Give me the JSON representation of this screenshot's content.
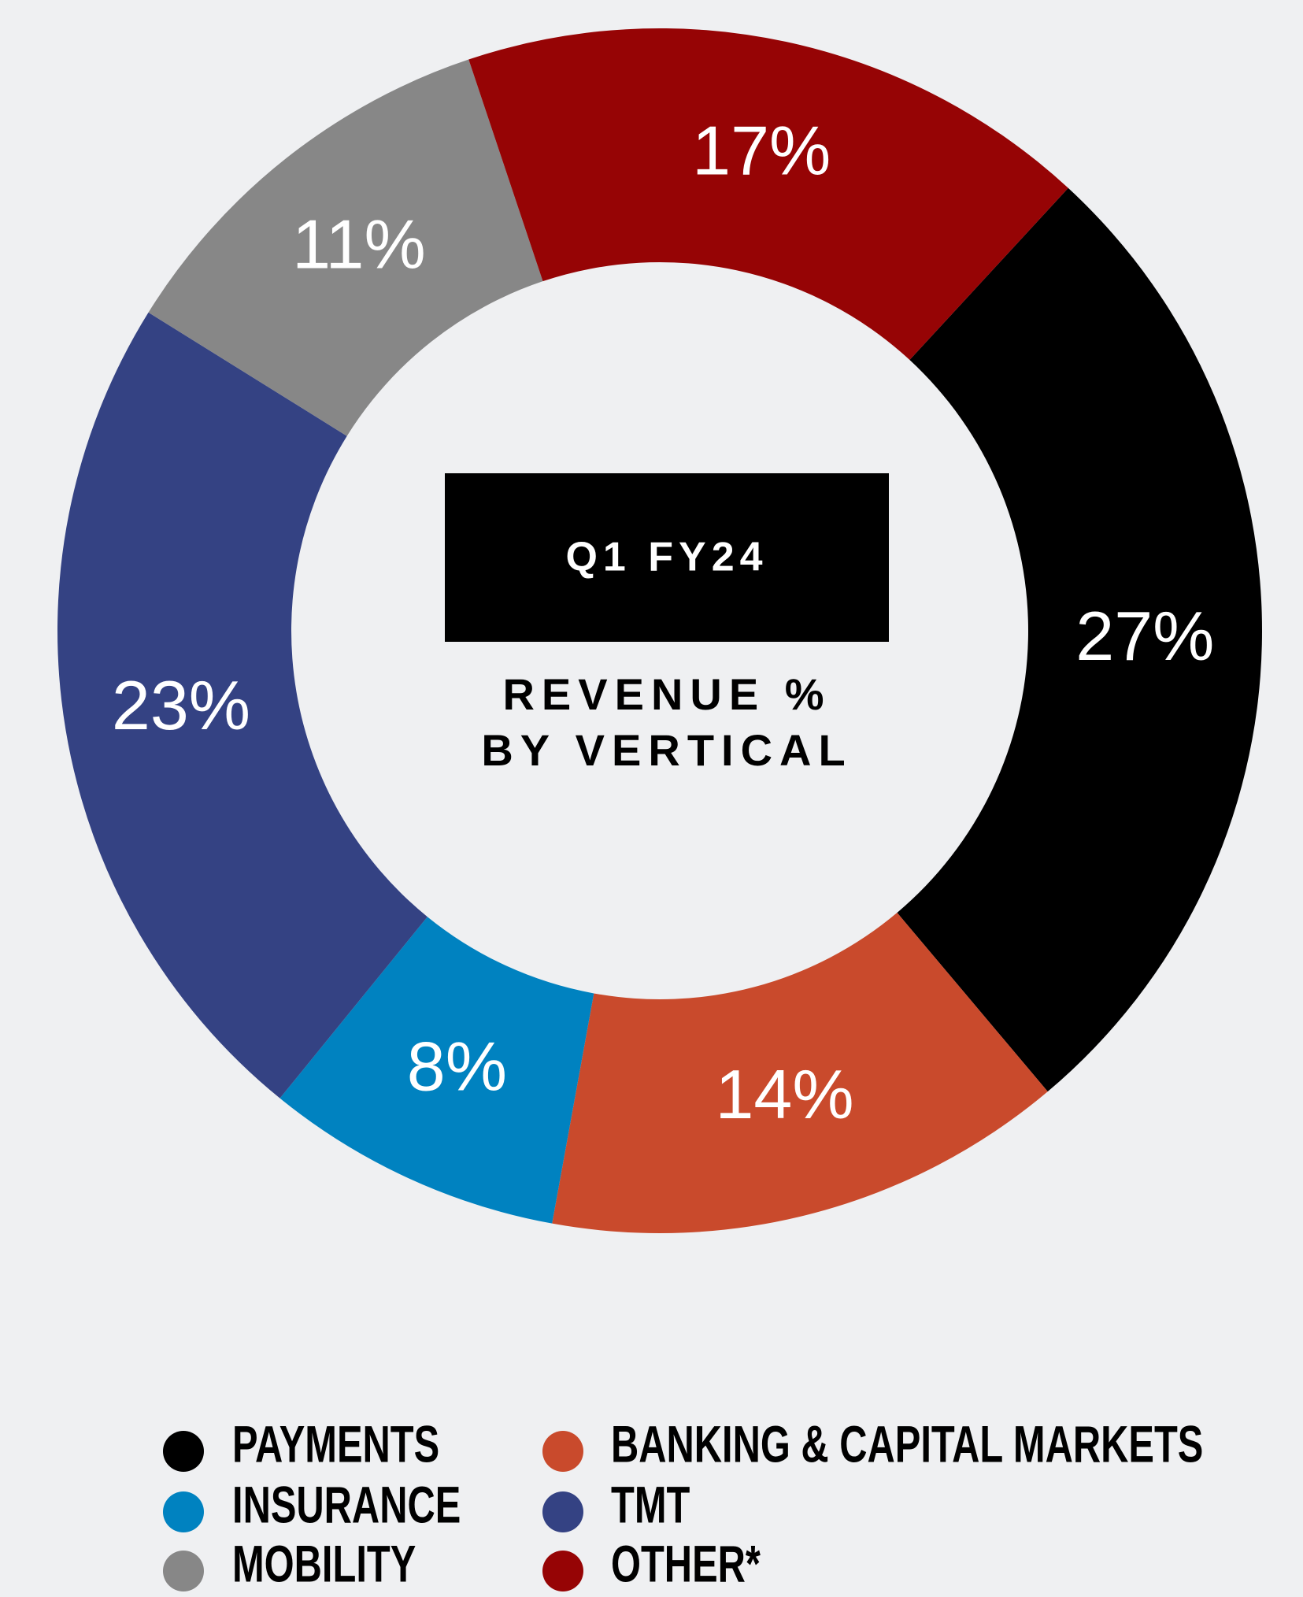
{
  "chart_data": {
    "type": "donut",
    "center_badge": "Q1 FY24",
    "center_title": [
      "REVENUE %",
      "BY VERTICAL"
    ],
    "categories": [
      "PAYMENTS",
      "BANKING & CAPITAL MARKETS",
      "INSURANCE",
      "TMT",
      "MOBILITY",
      "OTHER*"
    ],
    "values": [
      27,
      14,
      8,
      23,
      11,
      17
    ],
    "value_labels": [
      "27%",
      "14%",
      "8%",
      "23%",
      "11%",
      "17%"
    ],
    "colors": [
      "#000000",
      "#c94a2c",
      "#0082c0",
      "#344283",
      "#878787",
      "#960405"
    ],
    "legend_order": [
      0,
      2,
      4,
      1,
      3,
      5
    ]
  }
}
